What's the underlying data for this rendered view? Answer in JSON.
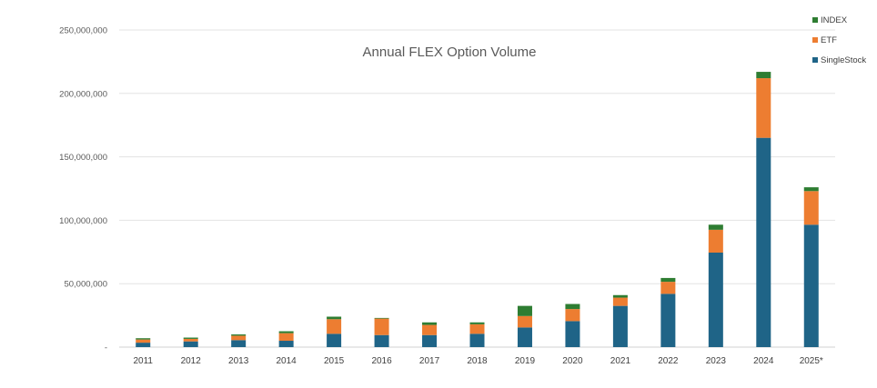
{
  "chart_data": {
    "type": "bar",
    "stacked": true,
    "title": "Annual FLEX Option Volume",
    "xlabel": "",
    "ylabel": "",
    "ylim": [
      0,
      250000000
    ],
    "y_ticks": [
      0,
      50000000,
      100000000,
      150000000,
      200000000,
      250000000
    ],
    "y_tick_labels": [
      "-",
      "50,000,000",
      "100,000,000",
      "150,000,000",
      "200,000,000",
      "250,000,000"
    ],
    "grid": true,
    "legend_position": "top-right",
    "categories": [
      "2011",
      "2012",
      "2013",
      "2014",
      "2015",
      "2016",
      "2017",
      "2018",
      "2019",
      "2020",
      "2021",
      "2022",
      "2023",
      "2024",
      "2025*"
    ],
    "series": [
      {
        "name": "SingleStock",
        "color": "#1f6487",
        "values": [
          3500000,
          4500000,
          5500000,
          5000000,
          10500000,
          9500000,
          9500000,
          10500000,
          15500000,
          20500000,
          32500000,
          42000000,
          74500000,
          165000000,
          96500000
        ]
      },
      {
        "name": "ETF",
        "color": "#ed7d31",
        "values": [
          2500000,
          2000000,
          3500000,
          6000000,
          11500000,
          13000000,
          8000000,
          7500000,
          9000000,
          9500000,
          6500000,
          9500000,
          18000000,
          47000000,
          26500000
        ]
      },
      {
        "name": "INDEX",
        "color": "#2e7d32",
        "values": [
          1000000,
          1000000,
          1000000,
          1500000,
          2000000,
          500000,
          2000000,
          1500000,
          8000000,
          4000000,
          2000000,
          3000000,
          4000000,
          5000000,
          3000000
        ]
      }
    ],
    "legend_order": [
      "INDEX",
      "ETF",
      "SingleStock"
    ]
  }
}
